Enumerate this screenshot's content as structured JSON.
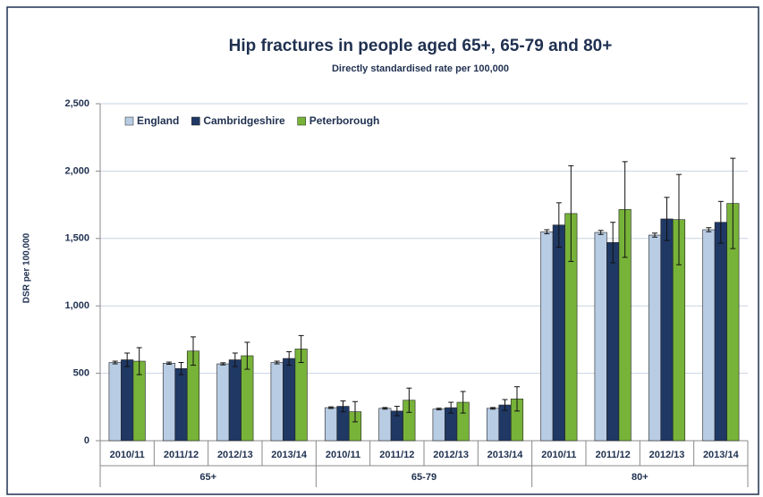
{
  "chart_data": {
    "type": "bar",
    "title": "Hip fractures in people aged 65+, 65-79 and 80+",
    "subtitle": "Directly standardised rate per 100,000",
    "y_label": "DSR per 100,000",
    "categories": [
      "2010/11",
      "2011/12",
      "2012/13",
      "2013/14",
      "2010/11",
      "2011/12",
      "2012/13",
      "2013/14",
      "2010/11",
      "2011/12",
      "2012/13",
      "2013/14"
    ],
    "groups": [
      "65+",
      "65-79",
      "80+"
    ],
    "series": [
      {
        "name": "England",
        "color": "#b8cce4",
        "values": [
          580,
          575,
          570,
          580,
          245,
          240,
          235,
          240,
          1550,
          1545,
          1525,
          1565
        ],
        "errors": [
          10,
          8,
          8,
          10,
          6,
          6,
          6,
          6,
          15,
          15,
          15,
          15
        ]
      },
      {
        "name": "Cambridgeshire",
        "color": "#1f3864",
        "values": [
          600,
          535,
          600,
          610,
          255,
          220,
          245,
          265,
          1600,
          1470,
          1645,
          1620
        ],
        "errors": [
          50,
          45,
          50,
          50,
          40,
          35,
          40,
          40,
          165,
          150,
          160,
          155
        ]
      },
      {
        "name": "Peterborough",
        "color": "#77b339",
        "values": [
          590,
          665,
          630,
          680,
          215,
          300,
          285,
          310,
          1685,
          1715,
          1640,
          1760
        ],
        "errors": [
          100,
          105,
          100,
          100,
          75,
          90,
          80,
          90,
          355,
          355,
          335,
          335
        ]
      }
    ],
    "ylim": [
      0,
      2500
    ],
    "yticks": [
      0,
      500,
      {
        "value": 1000,
        "label": "1,000"
      },
      {
        "value": 1500,
        "label": "1,500"
      },
      {
        "value": 2000,
        "label": "2,000"
      },
      {
        "value": 2500,
        "label": "2,500"
      }
    ],
    "grid": true,
    "legend": "top-left"
  }
}
